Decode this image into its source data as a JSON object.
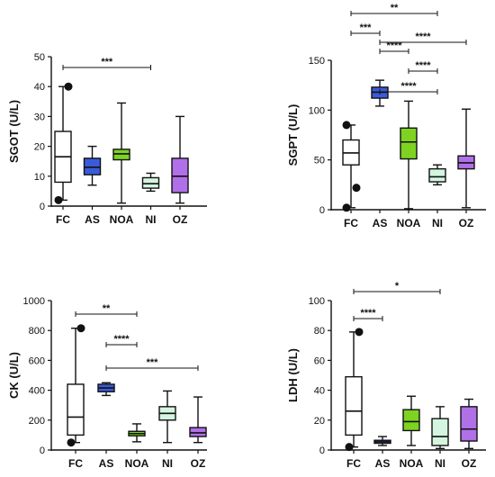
{
  "colors": {
    "FC": "#ffffff",
    "AS": "#3a5bd9",
    "NOA": "#7ed321",
    "NI": "#d4f5df",
    "OZ": "#b070e8",
    "line": "#111111"
  },
  "chart_data": [
    {
      "type": "box",
      "ylabel": "SGOT (U/L)",
      "ylim": [
        0,
        50
      ],
      "yticks": [
        0,
        10,
        20,
        30,
        40,
        50
      ],
      "categories": [
        "FC",
        "AS",
        "NOA",
        "NI",
        "OZ"
      ],
      "boxes": [
        {
          "category": "FC",
          "min": 2,
          "q1": 8,
          "median": 16.5,
          "q3": 25,
          "max": 40,
          "outliers": [
            2,
            40
          ]
        },
        {
          "category": "AS",
          "min": 7,
          "q1": 10.5,
          "median": 13,
          "q3": 16,
          "max": 20,
          "outliers": []
        },
        {
          "category": "NOA",
          "min": 1,
          "q1": 15.5,
          "median": 17.5,
          "q3": 19,
          "max": 34.5,
          "outliers": []
        },
        {
          "category": "NI",
          "min": 5,
          "q1": 6,
          "median": 7.5,
          "q3": 9.5,
          "max": 11,
          "outliers": []
        },
        {
          "category": "OZ",
          "min": 1,
          "q1": 4.5,
          "median": 10,
          "q3": 16,
          "max": 30,
          "outliers": []
        }
      ],
      "significance": [
        {
          "from": "FC",
          "to": "NI",
          "label": "***"
        }
      ]
    },
    {
      "type": "box",
      "ylabel": "SGPT (U/L)",
      "ylim": [
        0,
        150
      ],
      "yticks": [
        0,
        50,
        100,
        150
      ],
      "categories": [
        "FC",
        "AS",
        "NOA",
        "NI",
        "OZ"
      ],
      "boxes": [
        {
          "category": "FC",
          "min": 2,
          "q1": 45,
          "median": 57,
          "q3": 70,
          "max": 85,
          "outliers": [
            2,
            22,
            85
          ]
        },
        {
          "category": "AS",
          "min": 104,
          "q1": 112,
          "median": 118,
          "q3": 123,
          "max": 130,
          "outliers": []
        },
        {
          "category": "NOA",
          "min": 1,
          "q1": 51,
          "median": 68,
          "q3": 82,
          "max": 109,
          "outliers": []
        },
        {
          "category": "NI",
          "min": 25,
          "q1": 28,
          "median": 33,
          "q3": 41,
          "max": 45,
          "outliers": []
        },
        {
          "category": "OZ",
          "min": 2,
          "q1": 41,
          "median": 47,
          "q3": 54,
          "max": 101,
          "outliers": []
        }
      ],
      "significance": [
        {
          "from": "FC",
          "to": "NI",
          "label": "**"
        },
        {
          "from": "FC",
          "to": "AS",
          "label": "***"
        },
        {
          "from": "AS",
          "to": "NI",
          "label": "****"
        },
        {
          "from": "AS",
          "to": "OZ",
          "label": "****"
        },
        {
          "from": "AS",
          "to": "NOA",
          "label": "****"
        },
        {
          "from": "NOA",
          "to": "NI",
          "label": "****"
        }
      ]
    },
    {
      "type": "box",
      "ylabel": "CK (U/L)",
      "ylim": [
        0,
        1000
      ],
      "yticks": [
        0,
        200,
        400,
        600,
        800,
        1000
      ],
      "categories": [
        "FC",
        "AS",
        "NOA",
        "NI",
        "OZ"
      ],
      "boxes": [
        {
          "category": "FC",
          "min": 50,
          "q1": 100,
          "median": 220,
          "q3": 440,
          "max": 815,
          "outliers": [
            50,
            815
          ]
        },
        {
          "category": "AS",
          "min": 365,
          "q1": 390,
          "median": 415,
          "q3": 440,
          "max": 450,
          "outliers": []
        },
        {
          "category": "NOA",
          "min": 55,
          "q1": 95,
          "median": 110,
          "q3": 125,
          "max": 175,
          "outliers": []
        },
        {
          "category": "NI",
          "min": 50,
          "q1": 200,
          "median": 245,
          "q3": 290,
          "max": 395,
          "outliers": []
        },
        {
          "category": "OZ",
          "min": 50,
          "q1": 90,
          "median": 115,
          "q3": 150,
          "max": 355,
          "outliers": []
        }
      ],
      "significance": [
        {
          "from": "FC",
          "to": "NOA",
          "label": "**"
        },
        {
          "from": "AS",
          "to": "OZ",
          "label": "***"
        },
        {
          "from": "AS",
          "to": "NOA",
          "label": "****"
        }
      ]
    },
    {
      "type": "box",
      "ylabel": "LDH (U/L)",
      "ylim": [
        0,
        100
      ],
      "yticks": [
        0,
        20,
        40,
        60,
        80,
        100
      ],
      "categories": [
        "FC",
        "AS",
        "NOA",
        "NI",
        "OZ"
      ],
      "boxes": [
        {
          "category": "FC",
          "min": 2,
          "q1": 10,
          "median": 26,
          "q3": 49,
          "max": 79,
          "outliers": [
            2,
            79
          ]
        },
        {
          "category": "AS",
          "min": 3,
          "q1": 4.5,
          "median": 5.5,
          "q3": 6.5,
          "max": 9,
          "outliers": []
        },
        {
          "category": "NOA",
          "min": 3,
          "q1": 13,
          "median": 19,
          "q3": 27,
          "max": 36,
          "outliers": []
        },
        {
          "category": "NI",
          "min": 1,
          "q1": 3,
          "median": 9,
          "q3": 21,
          "max": 29,
          "outliers": []
        },
        {
          "category": "OZ",
          "min": 1,
          "q1": 6,
          "median": 14,
          "q3": 29,
          "max": 34,
          "outliers": []
        }
      ],
      "significance": [
        {
          "from": "FC",
          "to": "NI",
          "label": "*"
        },
        {
          "from": "FC",
          "to": "AS",
          "label": "****"
        }
      ]
    }
  ]
}
